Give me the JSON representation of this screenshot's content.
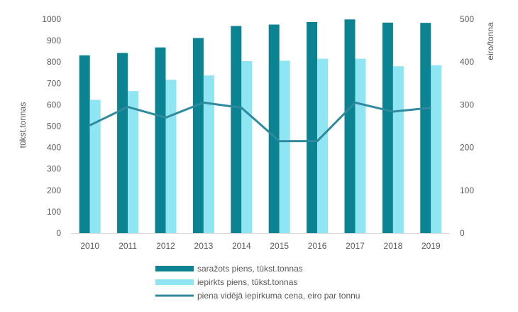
{
  "chart_data": {
    "type": "bar",
    "title": "",
    "categories": [
      "2010",
      "2011",
      "2012",
      "2013",
      "2014",
      "2015",
      "2016",
      "2017",
      "2018",
      "2019"
    ],
    "series": [
      {
        "name": "saražots piens, tūkst.tonnas",
        "kind": "bar",
        "axis": "left",
        "color": "#0b8391",
        "values": [
          831,
          842,
          868,
          912,
          968,
          975,
          987,
          999,
          984,
          983
        ]
      },
      {
        "name": "iepirkts piens, tūkst.tonnas",
        "kind": "bar",
        "axis": "left",
        "color": "#8fe6f2",
        "values": [
          623,
          664,
          717,
          737,
          804,
          806,
          815,
          815,
          780,
          785
        ]
      },
      {
        "name": "piena vidējā iepirkuma cena, eiro par tonnu",
        "kind": "line",
        "axis": "right",
        "color": "#2f8a9e",
        "values": [
          252,
          295,
          270,
          305,
          293,
          215,
          215,
          305,
          284,
          293
        ]
      }
    ],
    "ylabel_left": "tūkst.tonnas",
    "ylabel_right": "eiro/tonna",
    "ylim_left": [
      0,
      1000
    ],
    "ylim_right": [
      0,
      500
    ],
    "yticks_left": [
      "0",
      "100",
      "200",
      "300",
      "400",
      "500",
      "600",
      "700",
      "800",
      "900",
      "1000"
    ],
    "yticks_right": [
      "0",
      "100",
      "200",
      "300",
      "400",
      "500"
    ],
    "grid": false,
    "legend_position": "bottom"
  }
}
